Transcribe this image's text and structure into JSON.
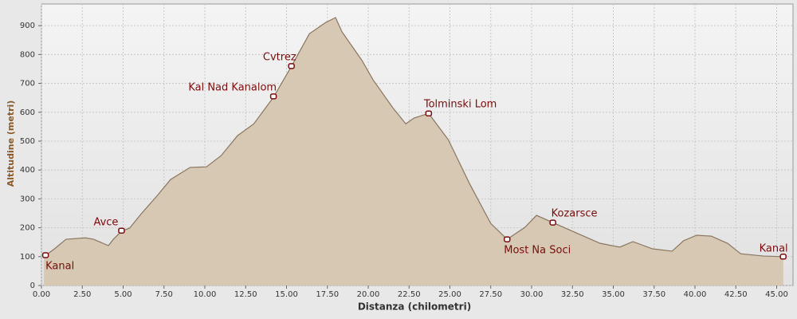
{
  "chart_data": {
    "type": "area",
    "x_label": "Distanza (chilometri)",
    "y_label": "Altitudine (metri)",
    "x": [
      0.15,
      0.8,
      1.5,
      2.7,
      3.2,
      4.1,
      4.4,
      4.9,
      5.4,
      6.1,
      7.1,
      7.9,
      9.1,
      10.1,
      11.0,
      12.0,
      13.0,
      14.2,
      15.3,
      16.4,
      17.4,
      18.0,
      18.4,
      19.6,
      20.3,
      21.5,
      22.3,
      22.8,
      23.7,
      24.9,
      26.2,
      27.5,
      28.5,
      29.6,
      30.3,
      31.3,
      32.5,
      34.2,
      35.4,
      36.2,
      37.4,
      38.6,
      39.3,
      40.1,
      41.0,
      42.0,
      42.8,
      44.2,
      45.4
    ],
    "values": [
      100,
      127,
      160,
      165,
      160,
      138,
      160,
      188,
      199,
      248,
      312,
      367,
      409,
      411,
      450,
      519,
      560,
      652,
      759,
      872,
      911,
      928,
      878,
      781,
      712,
      616,
      560,
      580,
      596,
      505,
      353,
      215,
      160,
      202,
      243,
      218,
      188,
      146,
      133,
      152,
      127,
      119,
      155,
      174,
      171,
      146,
      110,
      102,
      100
    ],
    "color": "#d6c8b3",
    "line_color": "#8a7660",
    "waypoints": {
      "names": [
        "Kanal",
        "Avce",
        "Kal Nad Kanalom",
        "Cvtrez",
        "Tolminski Lom",
        "Most Na Soci",
        "Kozarsce",
        "Kanal"
      ],
      "x": [
        0.25,
        4.9,
        14.2,
        15.3,
        23.7,
        28.5,
        31.3,
        45.4
      ],
      "y": [
        105,
        190,
        655,
        760,
        596,
        160,
        218,
        100
      ],
      "color": "#7a0c0c"
    },
    "xlim": [
      0,
      46
    ],
    "ylim": [
      0,
      975
    ],
    "xticks": [
      {
        "value": 0,
        "label": "0.00"
      },
      {
        "value": 2.5,
        "label": "2.50"
      },
      {
        "value": 5,
        "label": "5.00"
      },
      {
        "value": 7.5,
        "label": "7.50"
      },
      {
        "value": 10,
        "label": "10.00"
      },
      {
        "value": 12.5,
        "label": "12.50"
      },
      {
        "value": 15,
        "label": "15.00"
      },
      {
        "value": 17.5,
        "label": "17.50"
      },
      {
        "value": 20,
        "label": "20.00"
      },
      {
        "value": 22.5,
        "label": "22.50"
      },
      {
        "value": 25,
        "label": "25.00"
      },
      {
        "value": 27.5,
        "label": "27.50"
      },
      {
        "value": 30,
        "label": "30.00"
      },
      {
        "value": 32.5,
        "label": "32.50"
      },
      {
        "value": 35,
        "label": "35.00"
      },
      {
        "value": 37.5,
        "label": "37.50"
      },
      {
        "value": 40,
        "label": "40.00"
      },
      {
        "value": 42.5,
        "label": "42.50"
      },
      {
        "value": 45,
        "label": "45.00"
      }
    ],
    "yticks": [
      0,
      100,
      200,
      300,
      400,
      500,
      600,
      700,
      800,
      900
    ],
    "grid": true
  }
}
